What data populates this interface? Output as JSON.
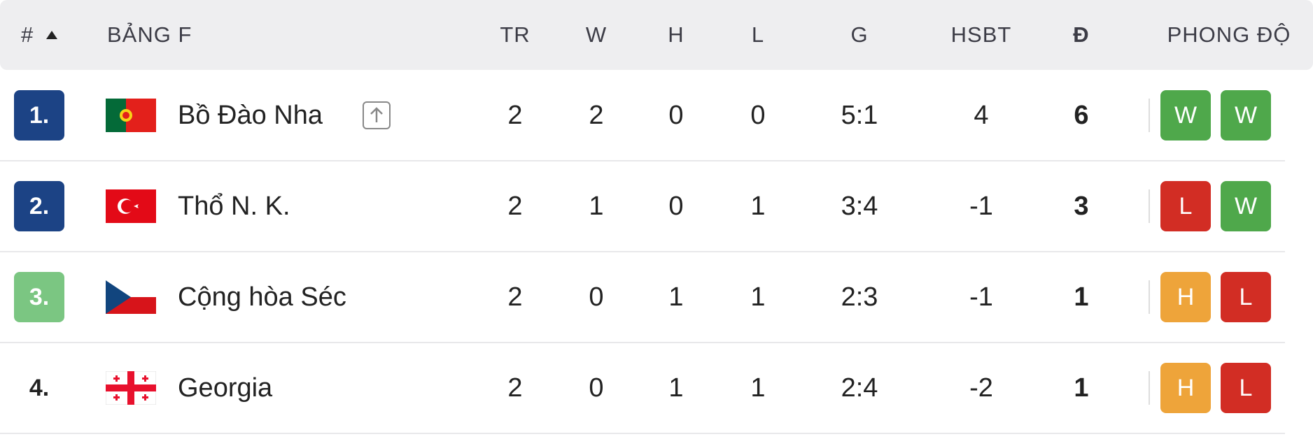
{
  "table": {
    "columns": [
      "#",
      "BẢNG F",
      "TR",
      "W",
      "H",
      "L",
      "G",
      "HSBT",
      "Đ",
      "PHONG ĐỘ"
    ],
    "rows": [
      {
        "rank": "1.",
        "team": "Bồ Đào Nha",
        "tr": 2,
        "w": 2,
        "h": 0,
        "l": 0,
        "g": "5:1",
        "hsbt": 4,
        "pts": 6,
        "form": [
          {
            "result": "W",
            "color": "#4fa84b"
          },
          {
            "result": "W",
            "color": "#4fa84b"
          }
        ]
      },
      {
        "rank": "2.",
        "team": "Thổ N. K.",
        "tr": 2,
        "w": 1,
        "h": 0,
        "l": 1,
        "g": "3:4",
        "hsbt": -1,
        "pts": 3,
        "form": [
          {
            "result": "L",
            "color": "#d22d24"
          },
          {
            "result": "W",
            "color": "#4fa84b"
          }
        ]
      },
      {
        "rank": "3.",
        "team": "Cộng hòa Séc",
        "tr": 2,
        "w": 0,
        "h": 1,
        "l": 1,
        "g": "2:3",
        "hsbt": -1,
        "pts": 1,
        "form": [
          {
            "result": "H",
            "color": "#eea43a"
          },
          {
            "result": "L",
            "color": "#d22d24"
          }
        ]
      },
      {
        "rank": "4.",
        "team": "Georgia",
        "tr": 2,
        "w": 0,
        "h": 1,
        "l": 1,
        "g": "2:4",
        "hsbt": -2,
        "pts": 1,
        "form": [
          {
            "result": "H",
            "color": "#eea43a"
          },
          {
            "result": "L",
            "color": "#d22d24"
          }
        ]
      }
    ]
  }
}
